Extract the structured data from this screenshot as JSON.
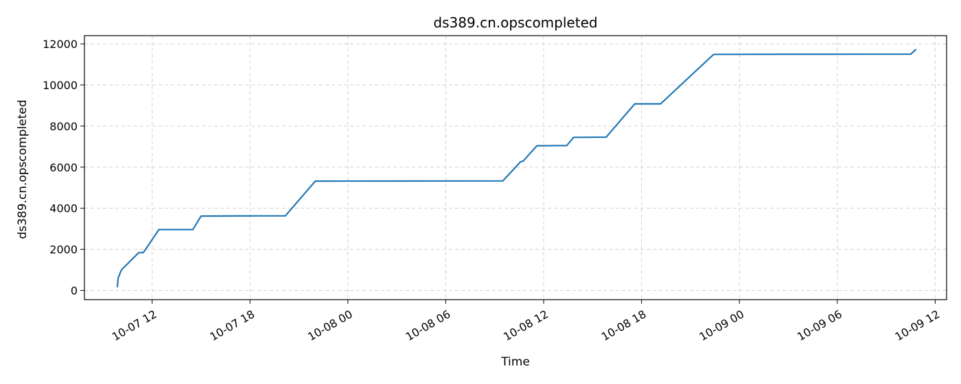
{
  "chart_data": {
    "type": "line",
    "title": "ds389.cn.opscompleted",
    "xlabel": "Time",
    "ylabel": "ds389.cn.opscompleted",
    "x_tick_labels": [
      "10-07 12",
      "10-07 18",
      "10-08 00",
      "10-08 06",
      "10-08 12",
      "10-08 18",
      "10-09 00",
      "10-09 06",
      "10-09 12"
    ],
    "y_tick_labels": [
      "0",
      "2000",
      "4000",
      "6000",
      "8000",
      "10000",
      "12000"
    ],
    "xlim": [
      "2023-10-07 07:51",
      "2023-10-09 12:42"
    ],
    "ylim": [
      -450,
      12400
    ],
    "grid": true,
    "legend": "none",
    "series": [
      {
        "color": "#1f77b4",
        "points": [
          {
            "x": "2023-10-07 09:52",
            "y": 150
          },
          {
            "x": "2023-10-07 09:55",
            "y": 600
          },
          {
            "x": "2023-10-07 10:07",
            "y": 1000
          },
          {
            "x": "2023-10-07 11:10",
            "y": 1830
          },
          {
            "x": "2023-10-07 11:28",
            "y": 1850
          },
          {
            "x": "2023-10-07 12:25",
            "y": 2960
          },
          {
            "x": "2023-10-07 13:30",
            "y": 2960
          },
          {
            "x": "2023-10-07 14:30",
            "y": 2960
          },
          {
            "x": "2023-10-07 15:00",
            "y": 3620
          },
          {
            "x": "2023-10-07 17:30",
            "y": 3625
          },
          {
            "x": "2023-10-07 19:00",
            "y": 3630
          },
          {
            "x": "2023-10-07 20:10",
            "y": 3630
          },
          {
            "x": "2023-10-07 22:00",
            "y": 5320
          },
          {
            "x": "2023-10-08 03:30",
            "y": 5325
          },
          {
            "x": "2023-10-08 09:30",
            "y": 5330
          },
          {
            "x": "2023-10-08 10:35",
            "y": 6260
          },
          {
            "x": "2023-10-08 10:45",
            "y": 6300
          },
          {
            "x": "2023-10-08 11:35",
            "y": 7040
          },
          {
            "x": "2023-10-08 12:45",
            "y": 7050
          },
          {
            "x": "2023-10-08 13:25",
            "y": 7050
          },
          {
            "x": "2023-10-08 13:50",
            "y": 7450
          },
          {
            "x": "2023-10-08 15:50",
            "y": 7460
          },
          {
            "x": "2023-10-08 17:35",
            "y": 9080
          },
          {
            "x": "2023-10-08 18:20",
            "y": 9080
          },
          {
            "x": "2023-10-08 19:10",
            "y": 9080
          },
          {
            "x": "2023-10-08 22:25",
            "y": 11490
          },
          {
            "x": "2023-10-09 04:30",
            "y": 11495
          },
          {
            "x": "2023-10-09 10:30",
            "y": 11500
          },
          {
            "x": "2023-10-09 10:50",
            "y": 11740
          }
        ]
      }
    ]
  }
}
